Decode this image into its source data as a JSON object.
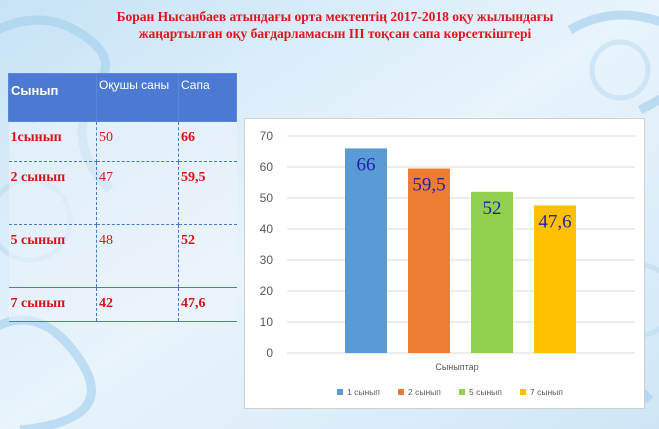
{
  "title_line1": "Боран  Нысанбаев  атындағы  орта  мектептің 2017-2018 оқу жылындағы",
  "title_line2": "жаңартылған оқу бағдарламасын ІІІ тоқсан сапа  көрсеткіштері",
  "table": {
    "headers": [
      "Сынып",
      "Оқушы саны",
      "Сапа"
    ],
    "rows": [
      [
        "1сынып",
        "50",
        "66"
      ],
      [
        "2 сынып",
        "47",
        "59,5"
      ],
      [
        "5 сынып",
        "48",
        "52"
      ],
      [
        "7 сынып",
        "42",
        "47,6"
      ]
    ]
  },
  "chart_data": {
    "type": "bar",
    "xlabel": "Сыныптар",
    "ylabel": "",
    "ylim": [
      0,
      70
    ],
    "yticks": [
      0,
      10,
      20,
      30,
      40,
      50,
      60,
      70
    ],
    "grid": true,
    "legend_position": "bottom",
    "series": [
      {
        "name": "1 сынып",
        "value": 66,
        "label": "66",
        "color": "#5b9bd5"
      },
      {
        "name": "2 сынып",
        "value": 59.5,
        "label": "59,5",
        "color": "#ed7d31"
      },
      {
        "name": "5 сынып",
        "value": 52,
        "label": "52",
        "color": "#92d050"
      },
      {
        "name": "7 сынып",
        "value": 47.6,
        "label": "47,6",
        "color": "#ffc000"
      }
    ]
  }
}
